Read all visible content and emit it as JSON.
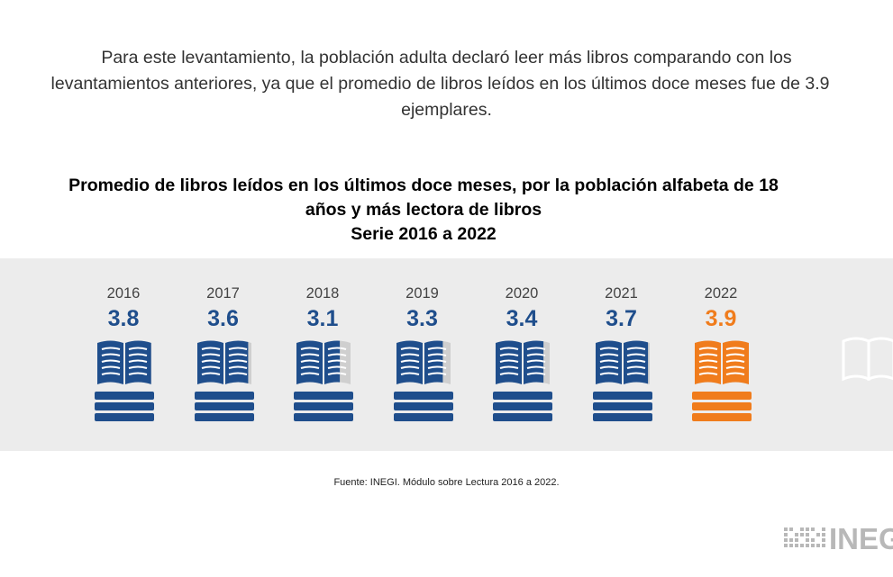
{
  "intro": {
    "line1": "Para este levantamiento, la población adulta declaró leer más libros comparando con los",
    "line2": "levantamientos anteriores, ya que el promedio de libros leídos en los últimos doce meses fue de 3.9",
    "line3": "ejemplares."
  },
  "chart_data": {
    "type": "bar",
    "title_lines": [
      "Promedio de libros leídos en los últimos doce meses, por la población alfabeta de 18",
      "años y más lectora de libros",
      "Serie 2016 a 2022"
    ],
    "categories": [
      "2016",
      "2017",
      "2018",
      "2019",
      "2020",
      "2021",
      "2022"
    ],
    "values": [
      3.8,
      3.6,
      3.1,
      3.3,
      3.4,
      3.7,
      3.9
    ],
    "value_labels": [
      "3.8",
      "3.6",
      "3.1",
      "3.3",
      "3.4",
      "3.7",
      "3.9"
    ],
    "scale_max": 4,
    "highlight_index": 6,
    "colors": {
      "main": "#1f4e8c",
      "highlight": "#f07c1c",
      "empty": "#cfcfcf",
      "band": "#ececec"
    },
    "icon": "open-book-on-stack-icon"
  },
  "source": "Fuente: INEGI. Módulo sobre Lectura 2016 a 2022.",
  "logo": {
    "text": "INEG",
    "icon": "inegi-logo-icon"
  }
}
